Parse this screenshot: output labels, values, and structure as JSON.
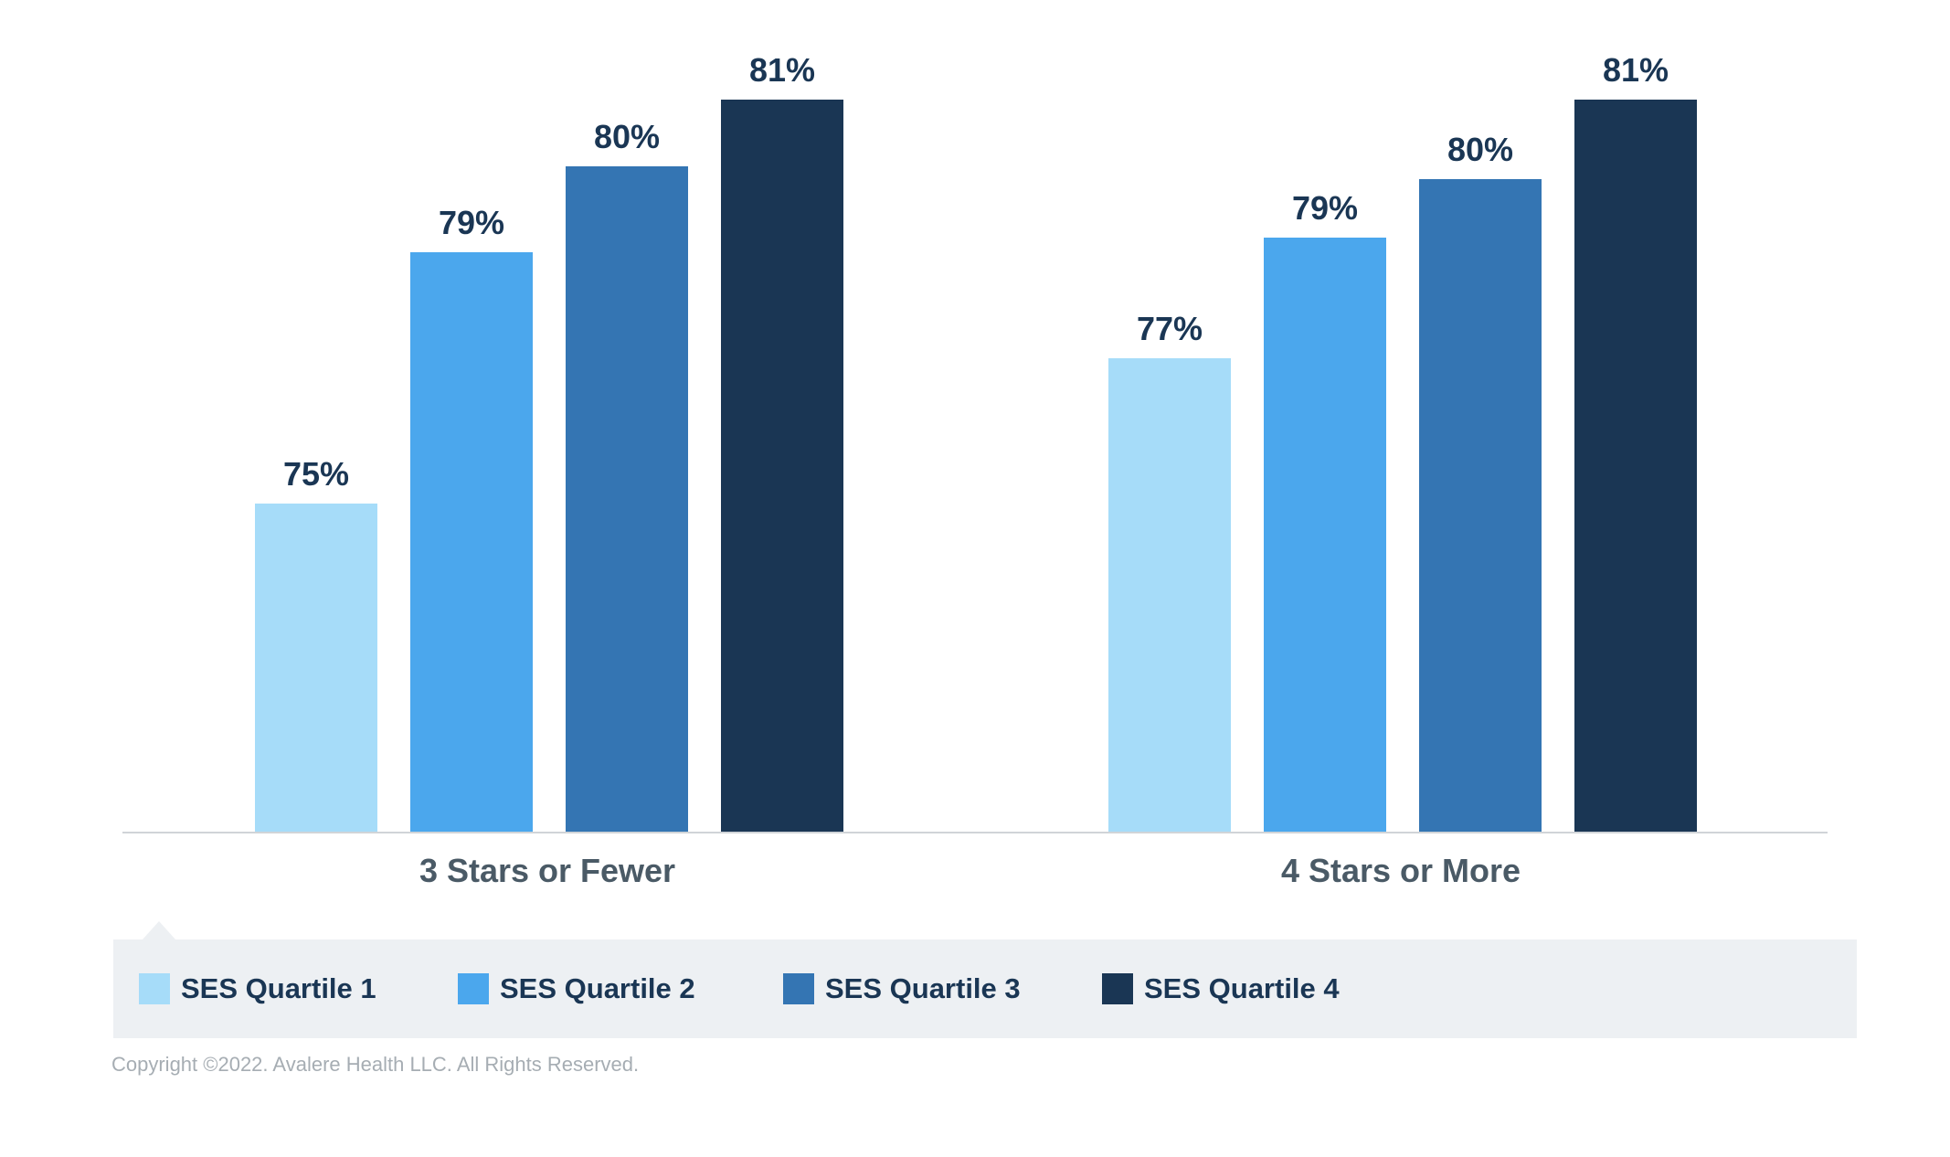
{
  "chart_data": {
    "type": "bar",
    "title": "",
    "xlabel": "",
    "ylabel": "",
    "ylim": [
      0,
      81
    ],
    "categories": [
      "3 Stars or Fewer",
      "4 Stars or More"
    ],
    "series": [
      {
        "name": "SES Quartile 1",
        "color": "#a6dcf9",
        "values": [
          75,
          77
        ],
        "labels": [
          "75%",
          "77%"
        ]
      },
      {
        "name": "SES Quartile 2",
        "color": "#4ba7ed",
        "values": [
          79,
          79
        ],
        "labels": [
          "79%",
          "79%"
        ]
      },
      {
        "name": "SES Quartile 3",
        "color": "#3475b3",
        "values": [
          80,
          80
        ],
        "labels": [
          "80%",
          "80%"
        ]
      },
      {
        "name": "SES Quartile 4",
        "color": "#1a3654",
        "values": [
          81,
          81
        ],
        "labels": [
          "81%",
          "81%"
        ]
      }
    ],
    "grid": false,
    "legend_position": "bottom"
  },
  "footer": {
    "copyright": "Copyright ©2022. Avalere Health LLC. All Rights Reserved."
  }
}
